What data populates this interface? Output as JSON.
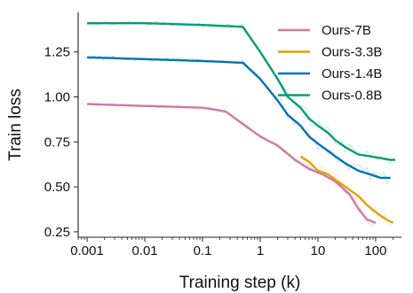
{
  "chart_data": {
    "type": "line",
    "xscale": "log",
    "xlabel": "Training step (k)",
    "ylabel": "Train loss",
    "xlim": [
      0.0007,
      280
    ],
    "ylim": [
      0.22,
      1.47
    ],
    "xticks": [
      0.001,
      0.01,
      0.1,
      1,
      10,
      100
    ],
    "xtick_labels": [
      "0.001",
      "0.01",
      "0.1",
      "1",
      "10",
      "100"
    ],
    "yticks": [
      0.25,
      0.5,
      0.75,
      1.0,
      1.25
    ],
    "ytick_labels": [
      "0.25",
      "0.50",
      "0.75",
      "1.00",
      "1.25"
    ],
    "grid": false,
    "legend": "top-right",
    "series": [
      {
        "name": "Ours-7B",
        "color": "#cc79a7",
        "x": [
          0.001,
          0.01,
          0.1,
          0.25,
          0.5,
          1,
          2,
          4,
          7,
          12,
          20,
          35,
          50,
          70,
          100
        ],
        "y": [
          0.96,
          0.95,
          0.94,
          0.92,
          0.85,
          0.78,
          0.73,
          0.65,
          0.6,
          0.57,
          0.53,
          0.46,
          0.38,
          0.32,
          0.3
        ]
      },
      {
        "name": "Ours-3.3B",
        "color": "#e69f00",
        "x": [
          5,
          7,
          10,
          15,
          20,
          30,
          50,
          70,
          100,
          150,
          200
        ],
        "y": [
          0.67,
          0.64,
          0.59,
          0.57,
          0.54,
          0.5,
          0.45,
          0.4,
          0.36,
          0.32,
          0.3
        ]
      },
      {
        "name": "Ours-1.4B",
        "color": "#0072b2",
        "x": [
          0.001,
          0.01,
          0.1,
          0.5,
          1,
          2,
          3,
          5,
          7,
          10,
          15,
          20,
          30,
          50,
          80,
          120,
          180
        ],
        "y": [
          1.22,
          1.21,
          1.2,
          1.19,
          1.1,
          0.98,
          0.9,
          0.84,
          0.78,
          0.74,
          0.7,
          0.67,
          0.63,
          0.59,
          0.57,
          0.55,
          0.55
        ]
      },
      {
        "name": "Ours-0.8B",
        "color": "#009e73",
        "x": [
          0.001,
          0.01,
          0.1,
          0.5,
          1,
          2,
          3,
          5,
          7,
          10,
          15,
          20,
          30,
          50,
          80,
          120,
          180,
          220
        ],
        "y": [
          1.41,
          1.41,
          1.4,
          1.39,
          1.25,
          1.1,
          1.0,
          0.94,
          0.88,
          0.84,
          0.8,
          0.76,
          0.72,
          0.68,
          0.67,
          0.66,
          0.65,
          0.65
        ]
      }
    ]
  }
}
